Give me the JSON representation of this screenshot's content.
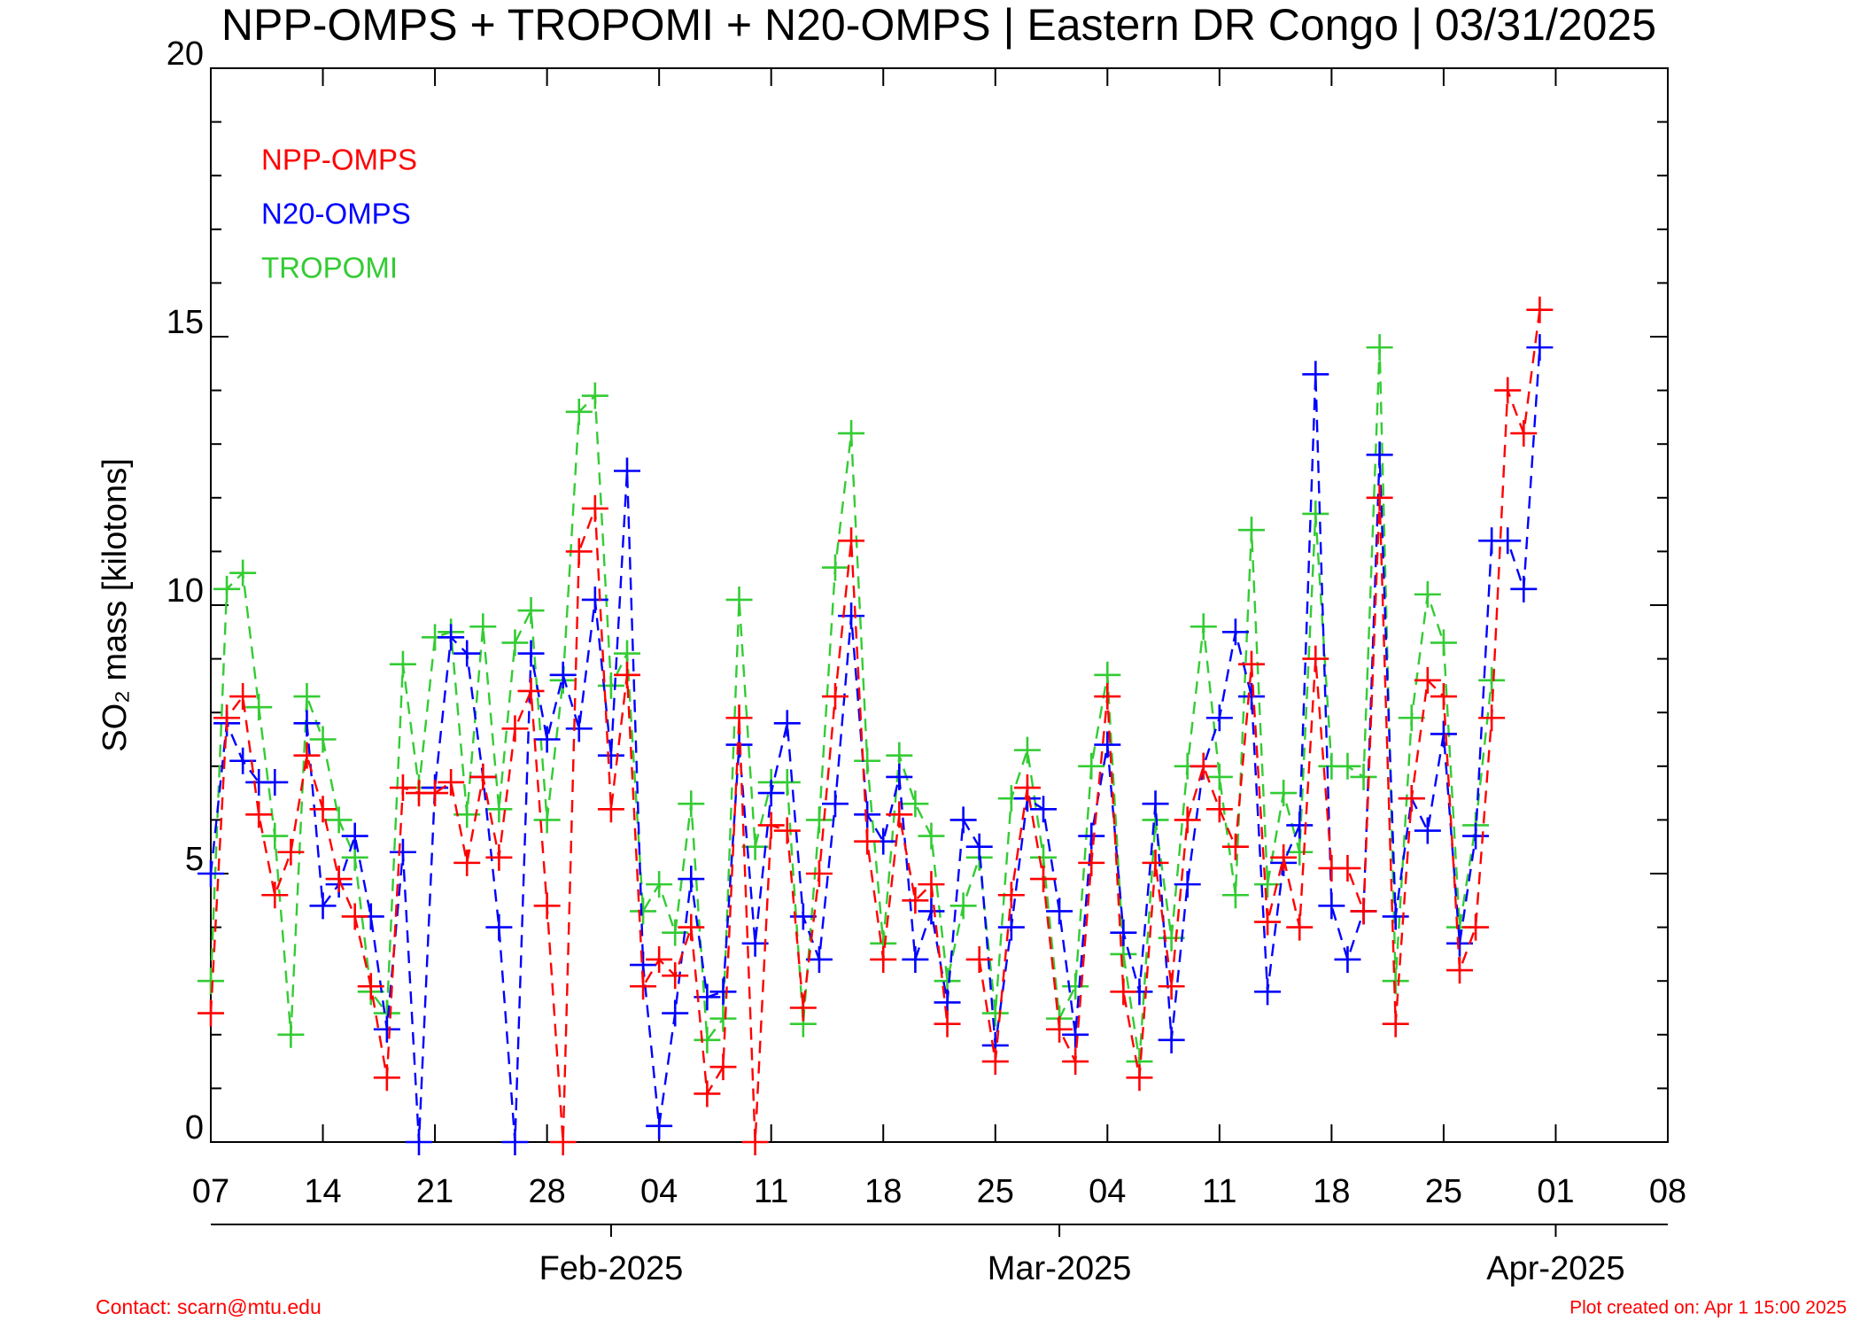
{
  "chart_data": {
    "type": "line",
    "title": "NPP-OMPS + TROPOMI + N20-OMPS | Eastern DR Congo | 03/31/2025",
    "y_label": "SO₂ mass [kilotons]",
    "footer_left": "Contact: scarn@mtu.edu",
    "footer_right": "Plot created on:  Apr  1 15:00 2025",
    "legend": "upper left",
    "dashed": true,
    "marker": "plus",
    "x": [
      "2025-01-07",
      "2025-01-08",
      "2025-01-09",
      "2025-01-10",
      "2025-01-11",
      "2025-01-12",
      "2025-01-13",
      "2025-01-14",
      "2025-01-15",
      "2025-01-16",
      "2025-01-17",
      "2025-01-18",
      "2025-01-19",
      "2025-01-20",
      "2025-01-21",
      "2025-01-22",
      "2025-01-23",
      "2025-01-24",
      "2025-01-25",
      "2025-01-26",
      "2025-01-27",
      "2025-01-28",
      "2025-01-29",
      "2025-01-30",
      "2025-01-31",
      "2025-02-01",
      "2025-02-02",
      "2025-02-03",
      "2025-02-04",
      "2025-02-05",
      "2025-02-06",
      "2025-02-07",
      "2025-02-08",
      "2025-02-09",
      "2025-02-10",
      "2025-02-11",
      "2025-02-12",
      "2025-02-13",
      "2025-02-14",
      "2025-02-15",
      "2025-02-16",
      "2025-02-17",
      "2025-02-18",
      "2025-02-19",
      "2025-02-20",
      "2025-02-21",
      "2025-02-22",
      "2025-02-23",
      "2025-02-24",
      "2025-02-25",
      "2025-02-26",
      "2025-02-27",
      "2025-02-28",
      "2025-03-01",
      "2025-03-02",
      "2025-03-03",
      "2025-03-04",
      "2025-03-05",
      "2025-03-06",
      "2025-03-07",
      "2025-03-08",
      "2025-03-09",
      "2025-03-10",
      "2025-03-11",
      "2025-03-12",
      "2025-03-13",
      "2025-03-14",
      "2025-03-15",
      "2025-03-16",
      "2025-03-17",
      "2025-03-18",
      "2025-03-19",
      "2025-03-20",
      "2025-03-21",
      "2025-03-22",
      "2025-03-23",
      "2025-03-24",
      "2025-03-25",
      "2025-03-26",
      "2025-03-27",
      "2025-03-28",
      "2025-03-29",
      "2025-03-30",
      "2025-03-31"
    ],
    "series": [
      {
        "name": "NPP-OMPS",
        "color": "#ff0000",
        "values": [
          2.4,
          7.9,
          8.3,
          6.1,
          4.6,
          5.4,
          7.2,
          6.2,
          4.9,
          4.2,
          2.9,
          1.2,
          6.6,
          6.5,
          6.5,
          6.7,
          5.2,
          6.8,
          5.3,
          7.7,
          8.4,
          4.4,
          0,
          11.0,
          11.8,
          6.2,
          8.7,
          2.9,
          3.4,
          3.1,
          4.0,
          0.9,
          1.4,
          7.9,
          0,
          5.9,
          5.8,
          2.5,
          5.0,
          8.3,
          11.2,
          5.6,
          3.4,
          6.1,
          4.5,
          4.8,
          2.2,
          null,
          3.4,
          1.5,
          4.6,
          6.6,
          4.9,
          2.1,
          1.5,
          5.2,
          8.3,
          2.8,
          1.2,
          5.2,
          2.9,
          6.0,
          7.0,
          6.2,
          5.5,
          8.9,
          4.1,
          5.3,
          4.0,
          9.0,
          5.1,
          5.1,
          4.3,
          12.0,
          2.2,
          6.4,
          8.6,
          8.3,
          3.2,
          4.0,
          7.9,
          14.0,
          13.2,
          15.5
        ]
      },
      {
        "name": "N20-OMPS",
        "color": "#0000ff",
        "values": [
          5.0,
          7.8,
          7.1,
          6.7,
          6.7,
          null,
          7.8,
          4.4,
          4.8,
          5.7,
          4.2,
          2.1,
          5.4,
          0,
          6.6,
          9.4,
          9.1,
          6.8,
          4.0,
          0,
          9.1,
          7.5,
          8.7,
          7.7,
          10.1,
          7.2,
          12.5,
          3.3,
          0.3,
          2.4,
          4.9,
          2.7,
          2.8,
          7.4,
          3.7,
          6.5,
          7.8,
          4.2,
          3.4,
          6.3,
          9.8,
          6.1,
          5.6,
          6.8,
          3.4,
          4.3,
          2.6,
          6.0,
          5.5,
          1.8,
          4.0,
          6.4,
          6.2,
          4.3,
          2.0,
          5.7,
          7.4,
          3.9,
          2.8,
          6.3,
          1.9,
          4.8,
          7.0,
          7.9,
          9.5,
          8.3,
          2.8,
          5.2,
          5.9,
          14.3,
          4.4,
          3.4,
          4.3,
          12.8,
          4.2,
          6.4,
          5.8,
          7.6,
          3.7,
          5.7,
          11.2,
          11.2,
          10.3,
          14.8
        ]
      },
      {
        "name": "TROPOMI",
        "color": "#33cc33",
        "values": [
          3.0,
          10.3,
          10.6,
          8.1,
          5.7,
          2.0,
          8.3,
          7.5,
          6.0,
          5.3,
          2.8,
          2.4,
          8.9,
          6.6,
          9.4,
          9.5,
          6.1,
          9.6,
          6.2,
          9.3,
          9.9,
          6.0,
          8.6,
          13.6,
          13.9,
          8.5,
          9.1,
          4.3,
          4.8,
          3.9,
          6.3,
          1.9,
          2.3,
          10.1,
          5.5,
          6.7,
          6.7,
          2.2,
          6.0,
          10.7,
          13.2,
          7.1,
          3.7,
          7.2,
          6.3,
          5.7,
          3.0,
          4.4,
          5.3,
          2.4,
          6.4,
          7.3,
          5.3,
          2.3,
          2.9,
          7.0,
          8.7,
          3.5,
          1.5,
          6.0,
          3.8,
          7.0,
          9.6,
          6.8,
          4.6,
          11.4,
          4.8,
          6.5,
          5.4,
          11.7,
          7.0,
          7.0,
          6.8,
          14.8,
          3.0,
          7.9,
          10.2,
          9.3,
          4.0,
          5.9,
          8.6,
          null,
          null,
          null
        ]
      }
    ],
    "xlim": [
      "2025-01-07",
      "2025-04-08"
    ],
    "xticks": [
      {
        "value": "2025-01-07",
        "label": "07"
      },
      {
        "value": "2025-01-14",
        "label": "14"
      },
      {
        "value": "2025-01-21",
        "label": "21"
      },
      {
        "value": "2025-01-28",
        "label": "28"
      },
      {
        "value": "2025-02-04",
        "label": "04"
      },
      {
        "value": "2025-02-11",
        "label": "11"
      },
      {
        "value": "2025-02-18",
        "label": "18"
      },
      {
        "value": "2025-02-25",
        "label": "25"
      },
      {
        "value": "2025-03-04",
        "label": "04"
      },
      {
        "value": "2025-03-11",
        "label": "11"
      },
      {
        "value": "2025-03-18",
        "label": "18"
      },
      {
        "value": "2025-03-25",
        "label": "25"
      },
      {
        "value": "2025-04-01",
        "label": "01"
      },
      {
        "value": "2025-04-08",
        "label": "08"
      }
    ],
    "month_ticks": [
      {
        "value": "2025-02-01",
        "label": "Feb-2025"
      },
      {
        "value": "2025-03-01",
        "label": "Mar-2025"
      },
      {
        "value": "2025-04-01",
        "label": "Apr-2025"
      }
    ],
    "ylim": [
      0,
      20
    ],
    "yticks": [
      0,
      5,
      10,
      15,
      20
    ],
    "yminorticks": [
      1,
      2,
      3,
      4,
      6,
      7,
      8,
      9,
      11,
      12,
      13,
      14,
      16,
      17,
      18,
      19
    ]
  }
}
